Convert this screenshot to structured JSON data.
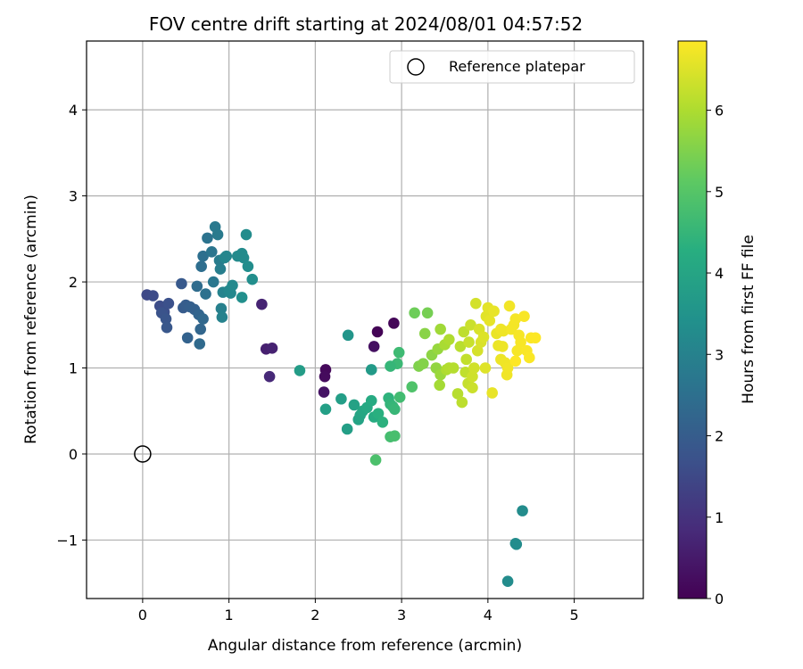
{
  "chart_data": {
    "type": "scatter",
    "title": "FOV centre drift starting at 2024/08/01 04:57:52",
    "xlabel": "Angular distance from reference (arcmin)",
    "ylabel": "Rotation from reference (arcmin)",
    "xlim": [
      -0.65,
      5.8
    ],
    "ylim": [
      -1.68,
      4.8
    ],
    "xticks": [
      0,
      1,
      2,
      3,
      4,
      5
    ],
    "yticks": [
      -1,
      0,
      1,
      2,
      3,
      4
    ],
    "xtick_labels": [
      "0",
      "1",
      "2",
      "3",
      "4",
      "5"
    ],
    "ytick_labels": [
      "−1",
      "0",
      "1",
      "2",
      "3",
      "4"
    ],
    "grid": true,
    "legend": {
      "position": "top-right",
      "label": "Reference platepar"
    },
    "reference_point": {
      "x": 0,
      "y": 0
    },
    "colorbar": {
      "label": "Hours from first FF file",
      "min": 0,
      "max": 6.85,
      "ticks": [
        0,
        1,
        2,
        3,
        4,
        5,
        6
      ],
      "tick_labels": [
        "0",
        "1",
        "2",
        "3",
        "4",
        "5",
        "6"
      ],
      "colormap": "viridis"
    },
    "series": [
      {
        "points": [
          [
            2.72,
            1.42,
            0.05
          ],
          [
            2.91,
            1.52,
            0.1
          ],
          [
            2.12,
            0.98,
            0.15
          ],
          [
            2.11,
            0.9,
            0.2
          ],
          [
            2.68,
            1.25,
            0.3
          ],
          [
            2.1,
            0.72,
            0.35
          ],
          [
            1.43,
            1.22,
            0.6
          ],
          [
            1.5,
            1.23,
            0.65
          ],
          [
            1.38,
            1.74,
            0.7
          ],
          [
            1.47,
            0.9,
            0.8
          ],
          [
            0.05,
            1.85,
            1.5
          ],
          [
            0.12,
            1.84,
            1.55
          ],
          [
            0.2,
            1.72,
            1.6
          ],
          [
            0.25,
            1.65,
            1.65
          ],
          [
            0.3,
            1.75,
            1.7
          ],
          [
            0.22,
            1.64,
            1.75
          ],
          [
            0.27,
            1.57,
            1.8
          ],
          [
            0.28,
            1.47,
            1.85
          ],
          [
            0.45,
            1.98,
            1.9
          ],
          [
            0.47,
            1.7,
            1.95
          ],
          [
            0.5,
            1.73,
            2.0
          ],
          [
            0.55,
            1.71,
            2.05
          ],
          [
            0.6,
            1.68,
            2.1
          ],
          [
            0.52,
            1.35,
            2.15
          ],
          [
            0.65,
            1.62,
            2.2
          ],
          [
            0.67,
            1.45,
            2.25
          ],
          [
            0.7,
            1.57,
            2.3
          ],
          [
            0.66,
            1.28,
            2.35
          ],
          [
            0.63,
            1.95,
            2.4
          ],
          [
            0.68,
            2.18,
            2.45
          ],
          [
            0.7,
            2.3,
            2.5
          ],
          [
            0.73,
            1.86,
            2.55
          ],
          [
            0.75,
            2.51,
            2.6
          ],
          [
            0.8,
            2.35,
            2.65
          ],
          [
            0.82,
            2.0,
            2.7
          ],
          [
            0.84,
            2.64,
            2.75
          ],
          [
            0.87,
            2.55,
            2.8
          ],
          [
            0.89,
            2.25,
            2.85
          ],
          [
            0.9,
            2.15,
            2.9
          ],
          [
            0.91,
            1.69,
            2.95
          ],
          [
            0.92,
            1.59,
            3.0
          ],
          [
            0.93,
            1.88,
            3.05
          ],
          [
            0.95,
            2.28,
            3.1
          ],
          [
            0.97,
            2.3,
            3.12
          ],
          [
            1.0,
            1.9,
            3.15
          ],
          [
            1.02,
            1.87,
            3.17
          ],
          [
            1.04,
            1.96,
            3.2
          ],
          [
            1.1,
            2.3,
            3.22
          ],
          [
            1.15,
            2.33,
            3.25
          ],
          [
            1.17,
            2.28,
            3.27
          ],
          [
            1.2,
            2.55,
            3.3
          ],
          [
            1.22,
            2.18,
            3.32
          ],
          [
            1.27,
            2.03,
            3.35
          ],
          [
            1.15,
            1.82,
            3.37
          ],
          [
            2.38,
            1.38,
            3.55
          ],
          [
            2.65,
            0.98,
            3.7
          ],
          [
            1.82,
            0.97,
            3.75
          ],
          [
            2.3,
            0.64,
            3.8
          ],
          [
            2.37,
            0.29,
            3.82
          ],
          [
            2.12,
            0.52,
            3.85
          ],
          [
            2.45,
            0.57,
            3.9
          ],
          [
            2.5,
            0.4,
            3.95
          ],
          [
            2.52,
            0.45,
            4.0
          ],
          [
            2.55,
            0.5,
            4.05
          ],
          [
            2.6,
            0.54,
            4.1
          ],
          [
            2.65,
            0.62,
            4.15
          ],
          [
            2.68,
            0.43,
            4.2
          ],
          [
            2.73,
            0.47,
            4.3
          ],
          [
            2.78,
            0.37,
            4.35
          ],
          [
            2.85,
            0.65,
            4.4
          ],
          [
            2.87,
            0.58,
            4.45
          ],
          [
            2.9,
            0.55,
            4.5
          ],
          [
            2.92,
            0.52,
            4.55
          ],
          [
            2.95,
            1.05,
            4.6
          ],
          [
            2.97,
            1.18,
            4.65
          ],
          [
            2.98,
            0.66,
            4.7
          ],
          [
            2.87,
            0.2,
            4.75
          ],
          [
            2.92,
            0.21,
            4.8
          ],
          [
            2.7,
            -0.07,
            4.85
          ],
          [
            3.12,
            0.78,
            4.9
          ],
          [
            2.87,
            1.02,
            4.5
          ],
          [
            3.15,
            1.64,
            5.3
          ],
          [
            3.3,
            1.64,
            5.4
          ],
          [
            3.2,
            1.02,
            5.5
          ],
          [
            3.25,
            1.05,
            5.55
          ],
          [
            3.27,
            1.4,
            5.6
          ],
          [
            3.35,
            1.15,
            5.65
          ],
          [
            3.4,
            1.0,
            5.7
          ],
          [
            3.42,
            1.22,
            5.75
          ],
          [
            3.45,
            0.92,
            5.8
          ],
          [
            3.45,
            1.45,
            5.85
          ],
          [
            3.44,
            0.8,
            5.9
          ],
          [
            3.5,
            1.27,
            5.95
          ],
          [
            3.52,
            0.98,
            6.0
          ],
          [
            3.55,
            1.33,
            6.02
          ],
          [
            3.55,
            1.0,
            6.05
          ],
          [
            3.6,
            1.0,
            6.08
          ],
          [
            3.65,
            0.7,
            6.1
          ],
          [
            3.68,
            1.25,
            6.12
          ],
          [
            3.7,
            0.6,
            6.15
          ],
          [
            3.72,
            1.42,
            6.18
          ],
          [
            3.74,
            0.95,
            6.2
          ],
          [
            3.75,
            1.1,
            6.22
          ],
          [
            3.77,
            0.82,
            6.25
          ],
          [
            3.78,
            1.3,
            6.28
          ],
          [
            3.8,
            1.5,
            6.3
          ],
          [
            3.82,
            0.77,
            6.32
          ],
          [
            3.82,
            0.9,
            6.35
          ],
          [
            3.84,
            1.0,
            6.37
          ],
          [
            3.86,
            1.75,
            6.4
          ],
          [
            3.88,
            1.2,
            6.42
          ],
          [
            3.9,
            1.45,
            6.45
          ],
          [
            3.92,
            1.3,
            6.47
          ],
          [
            3.95,
            1.36,
            6.5
          ],
          [
            3.97,
            1.0,
            6.52
          ],
          [
            3.98,
            1.6,
            6.55
          ],
          [
            4.0,
            1.7,
            6.57
          ],
          [
            4.02,
            1.55,
            6.6
          ],
          [
            4.05,
            0.71,
            6.62
          ],
          [
            4.07,
            1.66,
            6.63
          ],
          [
            4.1,
            1.4,
            6.65
          ],
          [
            4.12,
            1.26,
            6.66
          ],
          [
            4.15,
            1.1,
            6.67
          ],
          [
            4.17,
            1.25,
            6.68
          ],
          [
            4.18,
            1.43,
            6.69
          ],
          [
            4.2,
            1.06,
            6.7
          ],
          [
            4.22,
            0.92,
            6.71
          ],
          [
            4.23,
            1.0,
            6.72
          ],
          [
            4.25,
            1.72,
            6.73
          ],
          [
            4.27,
            1.45,
            6.74
          ],
          [
            4.3,
            1.5,
            6.75
          ],
          [
            4.32,
            1.57,
            6.76
          ],
          [
            4.34,
            1.2,
            6.77
          ],
          [
            4.36,
            1.38,
            6.78
          ],
          [
            4.38,
            1.3,
            6.79
          ],
          [
            4.42,
            1.6,
            6.8
          ],
          [
            4.45,
            1.2,
            6.81
          ],
          [
            4.48,
            1.12,
            6.82
          ],
          [
            4.5,
            1.35,
            6.83
          ],
          [
            4.55,
            1.35,
            6.84
          ],
          [
            4.32,
            1.08,
            6.85
          ],
          [
            4.15,
            1.45,
            6.7
          ],
          [
            4.4,
            -0.66,
            3.3
          ],
          [
            4.32,
            -1.04,
            3.3
          ],
          [
            4.33,
            -1.05,
            3.3
          ],
          [
            4.23,
            -1.48,
            3.3
          ]
        ]
      }
    ]
  }
}
